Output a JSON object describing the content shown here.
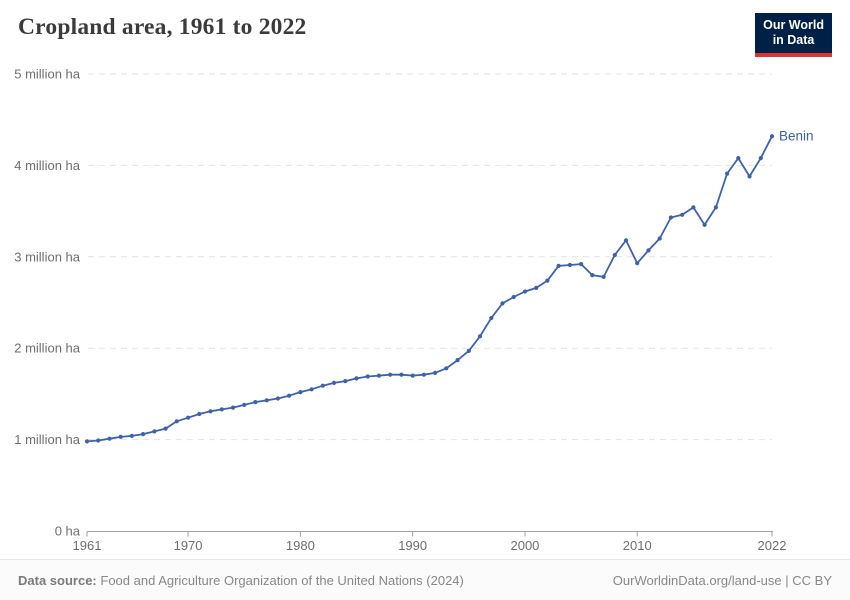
{
  "header": {
    "title": "Cropland area, 1961 to 2022"
  },
  "logo": {
    "line1": "Our World",
    "line2": "in Data"
  },
  "chart_data": {
    "type": "line",
    "title": "Cropland area, 1961 to 2022",
    "unit": "million ha",
    "series": [
      {
        "name": "Benin",
        "x": [
          1961,
          1962,
          1963,
          1964,
          1965,
          1966,
          1967,
          1968,
          1969,
          1970,
          1971,
          1972,
          1973,
          1974,
          1975,
          1976,
          1977,
          1978,
          1979,
          1980,
          1981,
          1982,
          1983,
          1984,
          1985,
          1986,
          1987,
          1988,
          1989,
          1990,
          1991,
          1992,
          1993,
          1994,
          1995,
          1996,
          1997,
          1998,
          1999,
          2000,
          2001,
          2002,
          2003,
          2004,
          2005,
          2006,
          2007,
          2008,
          2009,
          2010,
          2011,
          2012,
          2013,
          2014,
          2015,
          2016,
          2017,
          2018,
          2019,
          2020,
          2021,
          2022
        ],
        "values": [
          0.98,
          0.99,
          1.01,
          1.03,
          1.04,
          1.06,
          1.09,
          1.12,
          1.2,
          1.24,
          1.28,
          1.31,
          1.33,
          1.35,
          1.38,
          1.41,
          1.43,
          1.45,
          1.48,
          1.52,
          1.55,
          1.59,
          1.62,
          1.64,
          1.67,
          1.69,
          1.7,
          1.71,
          1.71,
          1.7,
          1.71,
          1.73,
          1.78,
          1.87,
          1.97,
          2.13,
          2.33,
          2.49,
          2.56,
          2.62,
          2.66,
          2.74,
          2.9,
          2.91,
          2.92,
          2.8,
          2.78,
          3.02,
          3.18,
          2.93,
          3.07,
          3.2,
          3.43,
          3.46,
          3.54,
          3.35,
          3.54,
          3.91,
          4.08,
          3.88,
          4.08,
          4.32
        ]
      }
    ],
    "xlim": [
      1961,
      2022
    ],
    "ylim": [
      0,
      5
    ],
    "x_ticks": [
      1961,
      1970,
      1980,
      1990,
      2000,
      2010,
      2022
    ],
    "y_ticks": [
      {
        "value": 0,
        "label": "0 ha"
      },
      {
        "value": 1,
        "label": "1 million ha"
      },
      {
        "value": 2,
        "label": "2 million ha"
      },
      {
        "value": 3,
        "label": "3 million ha"
      },
      {
        "value": 4,
        "label": "4 million ha"
      },
      {
        "value": 5,
        "label": "5 million ha"
      }
    ],
    "grid": true,
    "legend_position": "end-of-line"
  },
  "colors": {
    "line": "#3d62ad",
    "series_label": "#3d62ad",
    "grid": "#e2e2e2",
    "axis": "#a0a0a0",
    "tick_text": "#6e6e6e",
    "logo_bg": "#002147",
    "logo_red": "#dc352b",
    "title_text": "#3b3b3b"
  },
  "footer": {
    "source_label": "Data source:",
    "source_text": "Food and Agriculture Organization of the United Nations (2024)",
    "link_text": "OurWorldinData.org/land-use",
    "separator": "|",
    "license_text": "CC BY"
  }
}
